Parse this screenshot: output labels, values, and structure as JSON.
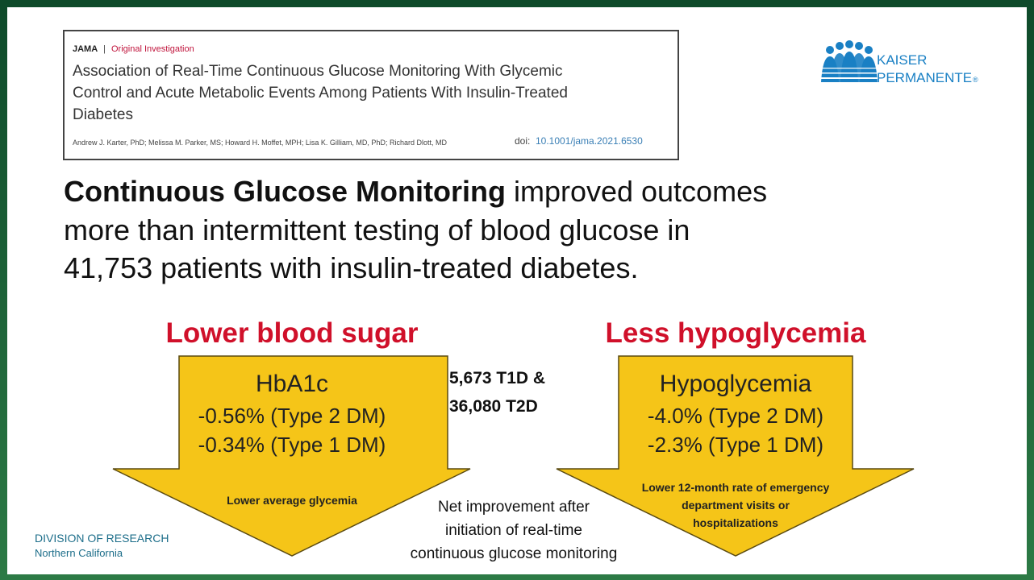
{
  "citation": {
    "journal": "JAMA",
    "separator": "|",
    "section": "Original Investigation",
    "title_lines": [
      "Association of Real-Time Continuous Glucose Monitoring With Glycemic",
      "Control and Acute Metabolic Events Among Patients With Insulin-Treated",
      "Diabetes"
    ],
    "authors": "Andrew J. Karter, PhD; Melissa M. Parker, MS; Howard H. Moffet, MPH; Lisa K. Gilliam, MD, PhD; Richard Dlott, MD",
    "doi_label": "doi:",
    "doi": "10.1001/jama.2021.6530"
  },
  "logo": {
    "line1": "KAISER",
    "line2": "PERMANENTE",
    "mark": "®"
  },
  "headline": {
    "bold": "Continuous Glucose Monitoring",
    "lines": [
      "improved outcomes",
      "more than intermittent testing of blood glucose in",
      "41,753 patients with insulin-treated diabetes."
    ]
  },
  "panels": [
    {
      "heading": "Lower blood sugar",
      "measure": "HbA1c",
      "results": [
        "-0.56% (Type 2 DM)",
        "-0.34% (Type 1 DM)"
      ],
      "note_lines": [
        "Lower average glycemia"
      ]
    },
    {
      "heading": "Less hypoglycemia",
      "measure": "Hypoglycemia",
      "results": [
        "-4.0% (Type 2 DM)",
        "-2.3% (Type 1 DM)"
      ],
      "note_lines": [
        "Lower 12-month rate of emergency",
        "department visits or",
        "hospitalizations"
      ]
    }
  ],
  "cohort": [
    "5,673 T1D &",
    "36,080 T2D"
  ],
  "caption": [
    "Net improvement after",
    "initiation of real-time",
    "continuous glucose monitoring"
  ],
  "footer": {
    "org": "DIVISION OF RESEARCH",
    "region": "Northern California"
  }
}
